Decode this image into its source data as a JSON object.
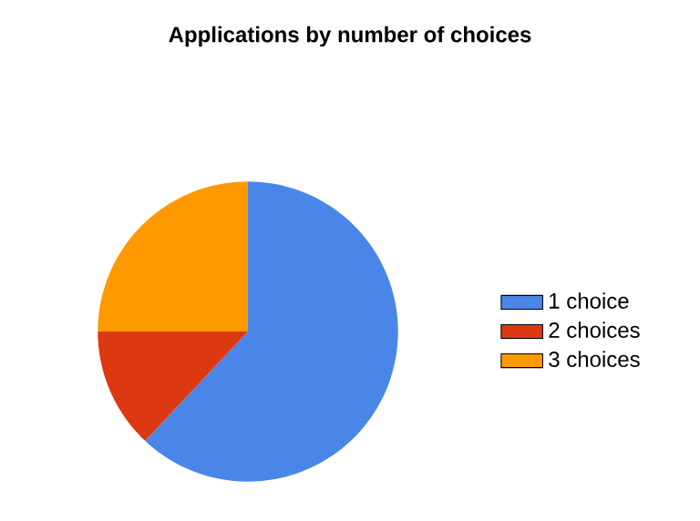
{
  "chart_data": {
    "type": "pie",
    "title": "Applications by number of choices",
    "categories": [
      "1 choice",
      "2 choices",
      "3 choices"
    ],
    "values": [
      62,
      13,
      25
    ],
    "colors": [
      "#4a86e8",
      "#dc3912",
      "#ff9900"
    ],
    "legend": "right"
  }
}
